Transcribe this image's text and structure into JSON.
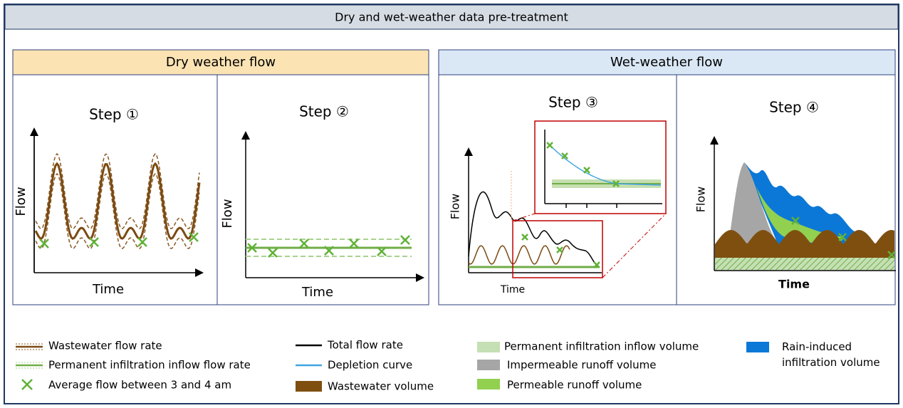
{
  "header": {
    "title": "Dry and wet-weather data pre-treatment"
  },
  "sections": [
    {
      "title": "Dry weather flow",
      "panels": [
        {
          "label": "Step ①",
          "y_axis": "Flow",
          "x_axis": "Time"
        },
        {
          "label": "Step ②",
          "y_axis": "Flow",
          "x_axis": "Time"
        }
      ]
    },
    {
      "title": "Wet-weather flow",
      "panels": [
        {
          "label": "Step ③",
          "y_axis": "Flow",
          "x_axis": "Time"
        },
        {
          "label": "Step ④",
          "y_axis": "Flow",
          "x_axis": "Time"
        }
      ]
    }
  ],
  "legend": [
    "Wastewater flow rate",
    "Permanent infiltration inflow flow rate",
    "Average flow between 3 and 4 am",
    "Total flow rate",
    "Depletion curve",
    "Wastewater volume",
    "Permanent infiltration inflow volume",
    "Impermeable runoff volume",
    "Permeable runoff volume",
    "Rain-induced infiltration volume"
  ]
}
